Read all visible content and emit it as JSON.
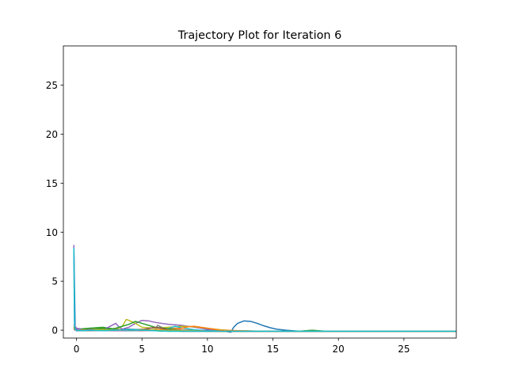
{
  "chart_data": {
    "type": "line",
    "title": "Trajectory Plot for Iteration 6",
    "xlabel": "",
    "ylabel": "",
    "xlim": [
      -1,
      29
    ],
    "ylim": [
      -0.8,
      29
    ],
    "xticks": [
      0,
      5,
      10,
      15,
      20,
      25
    ],
    "yticks": [
      0,
      5,
      10,
      15,
      20,
      25
    ],
    "xtick_labels": [
      "0",
      "5",
      "10",
      "15",
      "20",
      "25"
    ],
    "ytick_labels": [
      "0",
      "5",
      "10",
      "15",
      "20",
      "25"
    ],
    "grid": false,
    "legend": "none",
    "series": [
      {
        "color": "#1f77b4",
        "x": [
          -0.2,
          -0.1,
          0,
          0.5,
          1,
          2,
          3,
          4,
          5,
          6,
          7,
          8,
          9,
          10,
          11,
          11.8,
          12.0,
          12.3,
          12.8,
          13.3,
          13.8,
          14.3,
          14.8,
          15.3,
          16,
          17,
          18,
          20,
          22,
          25,
          29
        ],
        "y": [
          8.5,
          0.3,
          0.0,
          -0.05,
          0.0,
          0.05,
          0.0,
          -0.05,
          0.0,
          -0.05,
          0.0,
          0.0,
          -0.05,
          0.0,
          -0.05,
          -0.2,
          0.3,
          0.7,
          0.95,
          0.9,
          0.7,
          0.45,
          0.25,
          0.1,
          0.0,
          -0.1,
          -0.1,
          -0.1,
          -0.1,
          -0.1,
          -0.1
        ]
      },
      {
        "color": "#ff7f0e",
        "x": [
          -0.2,
          0,
          0.5,
          1,
          2,
          3,
          4,
          5,
          6,
          7,
          8,
          9,
          10,
          12,
          15,
          18,
          22,
          29
        ],
        "y": [
          0.4,
          0.1,
          0.0,
          0.1,
          0.2,
          0.1,
          0.0,
          0.1,
          0.0,
          -0.05,
          0.05,
          0.0,
          -0.05,
          -0.1,
          -0.1,
          -0.1,
          -0.1,
          -0.1
        ]
      },
      {
        "color": "#2ca02c",
        "x": [
          -0.2,
          0,
          0.5,
          1,
          1.5,
          2,
          2.5,
          3,
          3.5,
          4,
          4.5,
          5,
          5.5,
          6,
          7,
          8,
          10,
          14,
          17,
          18,
          19,
          22,
          29
        ],
        "y": [
          0.2,
          0.1,
          0.15,
          0.2,
          0.25,
          0.3,
          0.2,
          0.1,
          0.0,
          0.1,
          0.0,
          -0.05,
          0.0,
          -0.05,
          -0.1,
          -0.1,
          -0.1,
          -0.1,
          -0.1,
          0.0,
          -0.1,
          -0.1,
          -0.1
        ]
      },
      {
        "color": "#d62728",
        "x": [
          -0.2,
          0,
          0.5,
          1,
          2,
          3,
          4,
          5,
          6,
          7,
          8,
          10,
          14,
          20,
          29
        ],
        "y": [
          0.3,
          0.0,
          -0.05,
          0.05,
          0.0,
          -0.05,
          0.05,
          0.0,
          -0.05,
          0.0,
          -0.1,
          -0.1,
          -0.1,
          -0.1,
          -0.1
        ]
      },
      {
        "color": "#9467bd",
        "x": [
          -0.2,
          0,
          1,
          2,
          3,
          3.2,
          3.5,
          4,
          4.5,
          5,
          5.5,
          6,
          6.5,
          7,
          7.5,
          8,
          8.5,
          9,
          9.5,
          10,
          11,
          12,
          14,
          20,
          29
        ],
        "y": [
          0.6,
          0.2,
          0.0,
          0.0,
          0.7,
          0.4,
          0.1,
          0.3,
          0.7,
          1.0,
          0.95,
          0.8,
          0.7,
          0.6,
          0.55,
          0.5,
          0.4,
          0.3,
          0.2,
          0.1,
          0.0,
          -0.05,
          -0.1,
          -0.1,
          -0.1
        ]
      },
      {
        "color": "#8c564b",
        "x": [
          -0.2,
          0,
          1,
          2,
          3,
          4,
          5,
          6,
          7,
          8,
          10,
          14,
          20,
          29
        ],
        "y": [
          0.2,
          0.0,
          -0.05,
          0.0,
          -0.05,
          0.0,
          -0.05,
          0.0,
          -0.05,
          -0.1,
          -0.1,
          -0.1,
          -0.1,
          -0.1
        ]
      },
      {
        "color": "#e377c2",
        "x": [
          -0.2,
          0,
          1,
          2,
          3,
          4,
          5,
          6,
          7,
          7.5,
          8,
          9,
          10,
          14,
          20,
          29
        ],
        "y": [
          0.1,
          0.0,
          0.05,
          0.0,
          -0.05,
          0.0,
          0.05,
          0.0,
          0.1,
          0.2,
          0.05,
          0.0,
          -0.1,
          -0.1,
          -0.1,
          -0.1
        ]
      },
      {
        "color": "#7f7f7f",
        "x": [
          -0.2,
          0,
          1,
          2,
          3,
          4,
          5,
          6,
          6.2,
          6.5,
          7,
          8,
          10,
          14,
          20,
          29
        ],
        "y": [
          0.2,
          0.0,
          -0.05,
          0.0,
          0.0,
          0.05,
          0.0,
          0.0,
          0.5,
          0.3,
          0.1,
          0.0,
          -0.1,
          -0.1,
          -0.1,
          -0.1
        ]
      },
      {
        "color": "#bcbd22",
        "x": [
          -0.2,
          0,
          1,
          2,
          3,
          3.5,
          3.8,
          4.0,
          4.5,
          5,
          6,
          7,
          8,
          9,
          10,
          11,
          12,
          14,
          20,
          29
        ],
        "y": [
          0.3,
          0.0,
          0.05,
          0.1,
          0.1,
          0.4,
          1.1,
          1.0,
          0.7,
          0.3,
          0.2,
          0.3,
          0.4,
          0.35,
          0.2,
          0.05,
          -0.05,
          -0.1,
          -0.1,
          -0.1
        ]
      },
      {
        "color": "#17becf",
        "x": [
          -0.2,
          0,
          1,
          2,
          3,
          4,
          5,
          6,
          7,
          7.5,
          8,
          9,
          10,
          14,
          20,
          29
        ],
        "y": [
          0.1,
          0.0,
          0.0,
          -0.05,
          0.0,
          -0.05,
          0.0,
          0.05,
          0.15,
          0.4,
          0.25,
          0.05,
          -0.05,
          -0.1,
          -0.1,
          -0.1
        ]
      },
      {
        "color": "#1f77b4",
        "x": [
          -0.2,
          0,
          1,
          2,
          3,
          4,
          5,
          6,
          8,
          10,
          14,
          20,
          29
        ],
        "y": [
          0.1,
          -0.05,
          0.0,
          0.05,
          0.0,
          0.1,
          0.05,
          0.0,
          -0.05,
          -0.1,
          -0.1,
          -0.1,
          -0.1
        ]
      },
      {
        "color": "#ff7f0e",
        "x": [
          -0.2,
          0,
          1,
          2,
          3,
          4,
          6,
          8,
          8.5,
          9,
          9.5,
          10,
          11,
          14,
          20,
          29
        ],
        "y": [
          0.2,
          0.0,
          0.0,
          0.05,
          0.0,
          0.0,
          0.05,
          0.2,
          0.35,
          0.4,
          0.3,
          0.2,
          0.0,
          -0.1,
          -0.1,
          -0.1
        ]
      },
      {
        "color": "#2ca02c",
        "x": [
          -0.2,
          0,
          0.5,
          1,
          1.5,
          2,
          2.5,
          3,
          3.5,
          4,
          4.5,
          5,
          6,
          8,
          10,
          14,
          20,
          29
        ],
        "y": [
          0.3,
          0.0,
          0.1,
          0.2,
          0.2,
          0.15,
          0.1,
          0.2,
          0.4,
          0.6,
          0.9,
          0.7,
          0.3,
          0.0,
          -0.1,
          -0.1,
          -0.1,
          -0.1
        ]
      },
      {
        "color": "#d62728",
        "x": [
          -0.2,
          0,
          1,
          2,
          3,
          4,
          6,
          8,
          10,
          14,
          20,
          29
        ],
        "y": [
          0.2,
          0.0,
          0.05,
          0.0,
          -0.05,
          0.0,
          0.0,
          -0.05,
          -0.1,
          -0.1,
          -0.1,
          -0.1
        ]
      },
      {
        "color": "#9467bd",
        "x": [
          -0.2,
          -0.15,
          -0.1,
          0,
          0.5,
          1,
          2,
          3,
          5,
          8,
          12,
          20,
          29
        ],
        "y": [
          8.7,
          1.0,
          0.3,
          0.1,
          0.0,
          0.05,
          0.0,
          -0.05,
          0.0,
          -0.05,
          -0.1,
          -0.1,
          -0.1
        ]
      },
      {
        "color": "#8c564b",
        "x": [
          -0.2,
          0,
          1,
          2,
          3,
          4,
          5,
          6,
          6.5,
          7,
          8,
          10,
          14,
          20,
          29
        ],
        "y": [
          0.1,
          0.0,
          0.0,
          0.0,
          0.05,
          0.0,
          0.05,
          0.3,
          0.2,
          0.05,
          0.0,
          -0.1,
          -0.1,
          -0.1,
          -0.1
        ]
      },
      {
        "color": "#e377c2",
        "x": [
          -0.2,
          0,
          1,
          2,
          3,
          4,
          6,
          8,
          10,
          14,
          20,
          29
        ],
        "y": [
          0.05,
          0.0,
          0.0,
          -0.05,
          0.0,
          0.0,
          -0.05,
          0.0,
          -0.1,
          -0.1,
          -0.1,
          -0.1
        ]
      },
      {
        "color": "#7f7f7f",
        "x": [
          -0.2,
          0,
          1,
          2,
          3,
          4,
          6,
          8,
          10,
          14,
          20,
          29
        ],
        "y": [
          0.1,
          0.0,
          -0.05,
          0.0,
          0.05,
          0.0,
          0.0,
          -0.05,
          -0.1,
          -0.1,
          -0.1,
          -0.1
        ]
      },
      {
        "color": "#bcbd22",
        "x": [
          -0.2,
          0,
          1,
          2,
          3,
          4,
          6,
          8,
          10,
          14,
          20,
          29
        ],
        "y": [
          0.2,
          0.0,
          0.0,
          0.05,
          0.0,
          0.05,
          0.0,
          0.0,
          -0.1,
          -0.1,
          -0.1,
          -0.1
        ]
      },
      {
        "color": "#17becf",
        "x": [
          -0.2,
          -0.15,
          -0.1,
          0,
          0.5,
          1,
          2,
          3,
          4,
          5,
          6,
          7,
          8,
          10,
          14,
          20,
          25,
          29
        ],
        "y": [
          8.4,
          0.5,
          0.1,
          0.0,
          -0.05,
          0.0,
          -0.05,
          0.0,
          0.05,
          0.0,
          -0.05,
          -0.1,
          -0.1,
          -0.1,
          -0.1,
          -0.1,
          -0.1,
          -0.1
        ]
      }
    ]
  }
}
